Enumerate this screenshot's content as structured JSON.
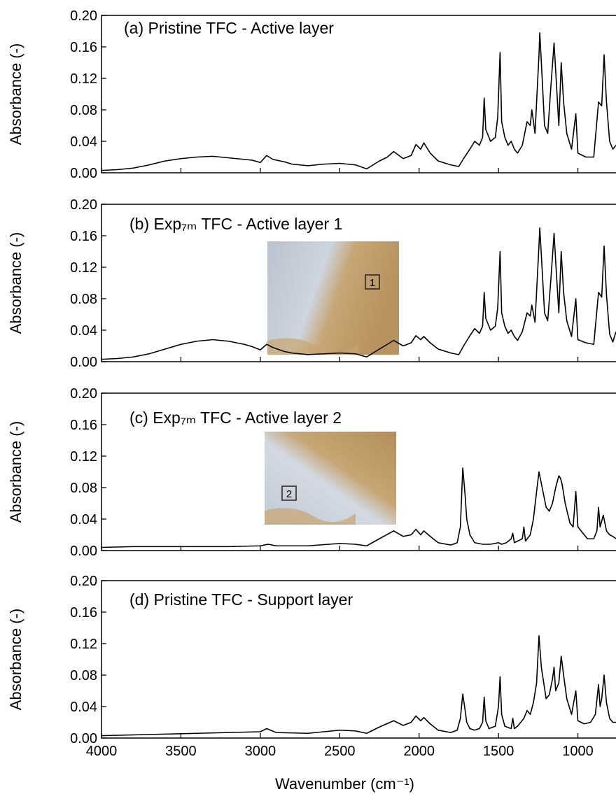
{
  "chart_data": [
    {
      "type": "line",
      "title": "(a) Pristine TFC - Active layer",
      "ylabel": "Absorbance (-)",
      "color": "#000000",
      "xlim": [
        4000,
        760
      ],
      "ylim": [
        0,
        0.2
      ],
      "yticks": [
        {
          "value": 0,
          "label": "0.00"
        },
        0.04,
        0.08,
        0.12,
        0.16,
        {
          "value": 0.2,
          "label": "0.20"
        }
      ],
      "x": [
        4000,
        3900,
        3800,
        3700,
        3600,
        3500,
        3400,
        3300,
        3200,
        3100,
        3050,
        3000,
        2960,
        2920,
        2850,
        2800,
        2700,
        2600,
        2500,
        2400,
        2330,
        2250,
        2200,
        2160,
        2100,
        2050,
        2020,
        1990,
        1970,
        1930,
        1880,
        1800,
        1750,
        1720,
        1680,
        1650,
        1620,
        1600,
        1590,
        1580,
        1550,
        1520,
        1505,
        1490,
        1480,
        1460,
        1440,
        1420,
        1400,
        1380,
        1350,
        1320,
        1300,
        1290,
        1270,
        1245,
        1240,
        1230,
        1210,
        1190,
        1170,
        1150,
        1140,
        1120,
        1105,
        1090,
        1070,
        1040,
        1013,
        1000,
        950,
        900,
        870,
        850,
        835,
        820,
        800,
        780,
        760
      ],
      "values": [
        0.003,
        0.004,
        0.006,
        0.01,
        0.015,
        0.018,
        0.02,
        0.021,
        0.019,
        0.017,
        0.016,
        0.013,
        0.022,
        0.017,
        0.014,
        0.011,
        0.009,
        0.011,
        0.012,
        0.01,
        0.005,
        0.015,
        0.02,
        0.027,
        0.018,
        0.022,
        0.036,
        0.03,
        0.038,
        0.025,
        0.015,
        0.01,
        0.008,
        0.018,
        0.03,
        0.04,
        0.035,
        0.045,
        0.095,
        0.055,
        0.04,
        0.045,
        0.07,
        0.153,
        0.065,
        0.045,
        0.035,
        0.04,
        0.03,
        0.025,
        0.035,
        0.065,
        0.06,
        0.08,
        0.05,
        0.15,
        0.178,
        0.14,
        0.06,
        0.05,
        0.11,
        0.165,
        0.13,
        0.06,
        0.14,
        0.09,
        0.05,
        0.03,
        0.075,
        0.025,
        0.02,
        0.02,
        0.09,
        0.085,
        0.15,
        0.09,
        0.04,
        0.03,
        0.035
      ]
    },
    {
      "type": "line",
      "title": "(b) Exp₇ₘ TFC - Active layer 1",
      "ylabel": "Absorbance (-)",
      "color": "#000000",
      "inset_label": "1",
      "xlim": [
        4000,
        760
      ],
      "ylim": [
        0,
        0.2
      ],
      "yticks": [
        {
          "value": 0,
          "label": "0.00"
        },
        0.04,
        0.08,
        0.12,
        0.16,
        {
          "value": 0.2,
          "label": "0.20"
        }
      ],
      "x": [
        4000,
        3900,
        3800,
        3700,
        3600,
        3500,
        3400,
        3300,
        3200,
        3100,
        3050,
        3000,
        2960,
        2920,
        2850,
        2800,
        2700,
        2600,
        2500,
        2400,
        2330,
        2250,
        2200,
        2160,
        2100,
        2050,
        2020,
        1990,
        1970,
        1930,
        1880,
        1800,
        1750,
        1720,
        1680,
        1650,
        1620,
        1600,
        1590,
        1580,
        1550,
        1520,
        1505,
        1490,
        1480,
        1460,
        1440,
        1420,
        1400,
        1380,
        1350,
        1320,
        1300,
        1290,
        1270,
        1245,
        1240,
        1230,
        1210,
        1190,
        1170,
        1150,
        1140,
        1120,
        1105,
        1090,
        1070,
        1040,
        1013,
        1000,
        950,
        900,
        870,
        850,
        835,
        820,
        800,
        780,
        760
      ],
      "values": [
        0.003,
        0.004,
        0.006,
        0.01,
        0.016,
        0.022,
        0.026,
        0.028,
        0.026,
        0.022,
        0.019,
        0.015,
        0.022,
        0.018,
        0.013,
        0.011,
        0.009,
        0.01,
        0.011,
        0.01,
        0.006,
        0.016,
        0.022,
        0.027,
        0.02,
        0.024,
        0.033,
        0.028,
        0.032,
        0.024,
        0.016,
        0.011,
        0.009,
        0.02,
        0.033,
        0.042,
        0.036,
        0.045,
        0.088,
        0.055,
        0.04,
        0.045,
        0.068,
        0.14,
        0.062,
        0.045,
        0.036,
        0.04,
        0.032,
        0.027,
        0.038,
        0.062,
        0.058,
        0.072,
        0.05,
        0.148,
        0.17,
        0.135,
        0.062,
        0.052,
        0.105,
        0.163,
        0.128,
        0.062,
        0.14,
        0.088,
        0.052,
        0.032,
        0.08,
        0.028,
        0.024,
        0.022,
        0.088,
        0.082,
        0.147,
        0.085,
        0.035,
        0.025,
        0.038
      ]
    },
    {
      "type": "line",
      "title": "(c) Exp₇ₘ TFC - Active layer 2",
      "ylabel": "Absorbance (-)",
      "color": "#000000",
      "inset_label": "2",
      "xlim": [
        4000,
        760
      ],
      "ylim": [
        0,
        0.2
      ],
      "yticks": [
        {
          "value": 0,
          "label": "0.00"
        },
        0.04,
        0.08,
        0.12,
        0.16,
        {
          "value": 0.2,
          "label": "0.20"
        }
      ],
      "x": [
        4000,
        3800,
        3600,
        3400,
        3200,
        3000,
        2950,
        2900,
        2700,
        2500,
        2400,
        2330,
        2250,
        2160,
        2100,
        2050,
        2020,
        1990,
        1970,
        1930,
        1880,
        1800,
        1760,
        1740,
        1725,
        1710,
        1700,
        1680,
        1650,
        1600,
        1550,
        1500,
        1480,
        1450,
        1420,
        1410,
        1400,
        1380,
        1350,
        1340,
        1330,
        1300,
        1280,
        1260,
        1245,
        1230,
        1200,
        1180,
        1160,
        1140,
        1120,
        1110,
        1100,
        1080,
        1050,
        1030,
        1013,
        1000,
        980,
        960,
        940,
        900,
        880,
        870,
        860,
        840,
        820,
        800,
        780,
        760
      ],
      "values": [
        0.004,
        0.005,
        0.005,
        0.005,
        0.005,
        0.006,
        0.008,
        0.006,
        0.006,
        0.009,
        0.008,
        0.006,
        0.015,
        0.025,
        0.018,
        0.02,
        0.027,
        0.02,
        0.025,
        0.018,
        0.01,
        0.007,
        0.01,
        0.03,
        0.105,
        0.07,
        0.04,
        0.02,
        0.01,
        0.008,
        0.008,
        0.01,
        0.008,
        0.01,
        0.015,
        0.022,
        0.01,
        0.012,
        0.015,
        0.03,
        0.012,
        0.02,
        0.04,
        0.075,
        0.1,
        0.085,
        0.055,
        0.05,
        0.06,
        0.08,
        0.095,
        0.092,
        0.085,
        0.06,
        0.035,
        0.03,
        0.075,
        0.03,
        0.025,
        0.02,
        0.015,
        0.015,
        0.025,
        0.055,
        0.03,
        0.045,
        0.025,
        0.02,
        0.018,
        0.015
      ]
    },
    {
      "type": "line",
      "title": "(d) Pristine TFC - Support layer",
      "ylabel": "Absorbance (-)",
      "color": "#000000",
      "xlabel": "Wavenumber (cm⁻¹)",
      "xlim": [
        4000,
        760
      ],
      "ylim": [
        0,
        0.2
      ],
      "yticks": [
        {
          "value": 0,
          "label": "0.00"
        },
        0.04,
        0.08,
        0.12,
        0.16,
        {
          "value": 0.2,
          "label": "0.20"
        }
      ],
      "xticks": [
        4000,
        3500,
        3000,
        2500,
        2000,
        1500,
        1000
      ],
      "x": [
        4000,
        3800,
        3600,
        3400,
        3200,
        3000,
        2960,
        2900,
        2700,
        2500,
        2400,
        2330,
        2250,
        2160,
        2100,
        2050,
        2020,
        1990,
        1970,
        1930,
        1880,
        1800,
        1760,
        1740,
        1725,
        1710,
        1700,
        1680,
        1650,
        1620,
        1600,
        1590,
        1580,
        1560,
        1520,
        1500,
        1490,
        1480,
        1460,
        1420,
        1410,
        1400,
        1380,
        1340,
        1320,
        1300,
        1280,
        1260,
        1245,
        1230,
        1200,
        1180,
        1160,
        1150,
        1140,
        1120,
        1105,
        1090,
        1070,
        1040,
        1013,
        1000,
        960,
        920,
        890,
        870,
        860,
        850,
        835,
        820,
        800,
        780,
        760
      ],
      "values": [
        0.003,
        0.004,
        0.005,
        0.006,
        0.007,
        0.008,
        0.012,
        0.007,
        0.006,
        0.01,
        0.009,
        0.006,
        0.014,
        0.022,
        0.016,
        0.02,
        0.028,
        0.022,
        0.026,
        0.018,
        0.01,
        0.007,
        0.01,
        0.025,
        0.056,
        0.035,
        0.02,
        0.012,
        0.01,
        0.012,
        0.02,
        0.052,
        0.022,
        0.012,
        0.015,
        0.04,
        0.078,
        0.03,
        0.015,
        0.012,
        0.025,
        0.012,
        0.015,
        0.025,
        0.035,
        0.03,
        0.045,
        0.07,
        0.13,
        0.09,
        0.05,
        0.055,
        0.075,
        0.09,
        0.06,
        0.07,
        0.104,
        0.08,
        0.05,
        0.03,
        0.06,
        0.022,
        0.018,
        0.02,
        0.03,
        0.068,
        0.04,
        0.05,
        0.08,
        0.045,
        0.025,
        0.02,
        0.02
      ]
    }
  ]
}
